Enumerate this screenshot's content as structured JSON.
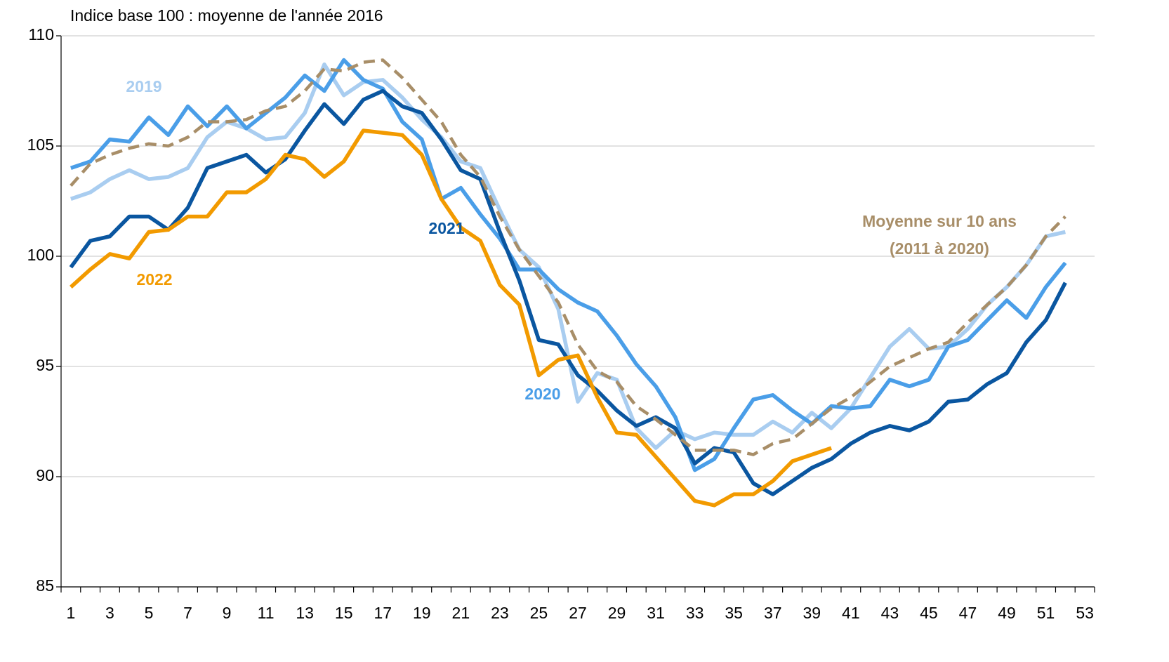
{
  "chart_data": {
    "type": "line",
    "subtitle": "Indice base 100 : moyenne de l'année 2016",
    "x": [
      1,
      2,
      3,
      4,
      5,
      6,
      7,
      8,
      9,
      10,
      11,
      12,
      13,
      14,
      15,
      16,
      17,
      18,
      19,
      20,
      21,
      22,
      23,
      24,
      25,
      26,
      27,
      28,
      29,
      30,
      31,
      32,
      33,
      34,
      35,
      36,
      37,
      38,
      39,
      40,
      41,
      42,
      43,
      44,
      45,
      46,
      47,
      48,
      49,
      50,
      51,
      52
    ],
    "xlim": [
      0.5,
      53.5
    ],
    "xticks": [
      1,
      3,
      5,
      7,
      9,
      11,
      13,
      15,
      17,
      19,
      21,
      23,
      25,
      27,
      29,
      31,
      33,
      35,
      37,
      39,
      41,
      43,
      45,
      47,
      49,
      51,
      53
    ],
    "ylim": [
      85,
      110
    ],
    "yticks": [
      85,
      90,
      95,
      100,
      105,
      110
    ],
    "grid": true,
    "series": [
      {
        "name": "2019",
        "color": "#a9cdf0",
        "values": [
          102.6,
          102.9,
          103.5,
          103.9,
          103.5,
          103.6,
          104.0,
          105.4,
          106.1,
          105.8,
          105.3,
          105.4,
          106.5,
          108.7,
          107.3,
          107.9,
          108.0,
          107.2,
          106.2,
          105.4,
          104.3,
          104.0,
          102.1,
          100.3,
          99.5,
          97.6,
          93.4,
          94.7,
          94.4,
          92.2,
          91.3,
          92.1,
          91.7,
          92.0,
          91.9,
          91.9,
          92.5,
          92.0,
          92.9,
          92.2,
          93.1,
          94.5,
          95.9,
          96.7,
          95.8,
          95.9,
          96.7,
          97.8,
          98.6,
          99.6,
          100.9,
          101.1
        ]
      },
      {
        "name": "2020",
        "color": "#4a9ee8",
        "values": [
          104.0,
          104.3,
          105.3,
          105.2,
          106.3,
          105.5,
          106.8,
          105.9,
          106.8,
          105.8,
          106.5,
          107.2,
          108.2,
          107.5,
          108.9,
          108.0,
          107.6,
          106.1,
          105.3,
          102.6,
          103.1,
          101.9,
          100.8,
          99.4,
          99.4,
          98.5,
          97.9,
          97.5,
          96.4,
          95.1,
          94.1,
          92.7,
          90.3,
          90.8,
          92.2,
          93.5,
          93.7,
          93.0,
          92.4,
          93.2,
          93.1,
          93.2,
          94.4,
          94.1,
          94.4,
          95.9,
          96.2,
          97.1,
          98.0,
          97.2,
          98.6,
          99.7
        ]
      },
      {
        "name": "2021",
        "color": "#0a56a0",
        "values": [
          99.5,
          100.7,
          100.9,
          101.8,
          101.8,
          101.2,
          102.2,
          104.0,
          104.3,
          104.6,
          103.8,
          104.4,
          105.7,
          106.9,
          106.0,
          107.1,
          107.5,
          106.8,
          106.5,
          105.3,
          103.9,
          103.5,
          101.1,
          98.9,
          96.2,
          96.0,
          94.6,
          93.9,
          93.0,
          92.3,
          92.7,
          92.2,
          90.6,
          91.3,
          91.1,
          89.7,
          89.2,
          89.8,
          90.4,
          90.8,
          91.5,
          92.0,
          92.3,
          92.1,
          92.5,
          93.4,
          93.5,
          94.2,
          94.7,
          96.1,
          97.1,
          98.8
        ]
      },
      {
        "name": "2022",
        "color": "#f29a00",
        "values": [
          98.6,
          99.4,
          100.1,
          99.9,
          101.1,
          101.2,
          101.8,
          101.8,
          102.9,
          102.9,
          103.5,
          104.6,
          104.4,
          103.6,
          104.3,
          105.7,
          105.6,
          105.5,
          104.6,
          102.6,
          101.3,
          100.7,
          98.7,
          97.8,
          94.6,
          95.3,
          95.5,
          93.6,
          92.0,
          91.9,
          90.9,
          89.9,
          88.9,
          88.7,
          89.2,
          89.2,
          89.8,
          90.7,
          91.0,
          91.3,
          null,
          null,
          null,
          null,
          null,
          null,
          null,
          null,
          null,
          null,
          null,
          null
        ]
      },
      {
        "name": "Moyenne sur 10 ans (2011 à 2020)",
        "color": "#a88e68",
        "dashed": true,
        "values": [
          103.2,
          104.2,
          104.6,
          104.9,
          105.1,
          105.0,
          105.4,
          106.1,
          106.1,
          106.2,
          106.6,
          106.8,
          107.5,
          108.5,
          108.4,
          108.8,
          108.9,
          108.1,
          107.1,
          106.1,
          104.6,
          103.6,
          101.8,
          100.3,
          99.1,
          97.9,
          96.0,
          94.8,
          94.3,
          93.2,
          92.6,
          91.9,
          91.2,
          91.2,
          91.2,
          91.0,
          91.5,
          91.7,
          92.4,
          93.1,
          93.6,
          94.3,
          95.0,
          95.4,
          95.8,
          96.1,
          97.0,
          97.8,
          98.6,
          99.6,
          100.9,
          101.8
        ]
      }
    ]
  }
}
